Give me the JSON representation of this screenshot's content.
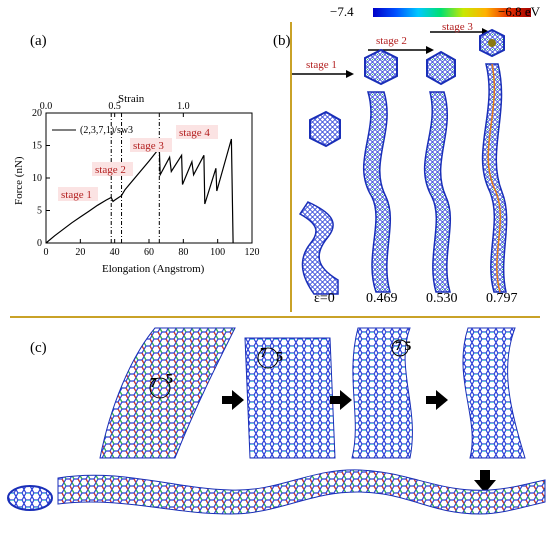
{
  "panel_labels": {
    "a": "(a)",
    "b": "(b)",
    "c": "(c)"
  },
  "colorbar": {
    "min_label": "−7.4",
    "max_label": "−6.8 eV"
  },
  "panel_b": {
    "stages": [
      "stage 1",
      "stage 2",
      "stage 3"
    ],
    "strain_values": [
      "ε=0",
      "0.469",
      "0.530",
      "0.797"
    ]
  },
  "chart_data": {
    "type": "line",
    "title": "",
    "xlabel": "Elongation (Angstrom)",
    "ylabel": "Force (nN)",
    "top_xlabel": "Strain",
    "xlim": [
      0,
      120
    ],
    "ylim": [
      0,
      20
    ],
    "x_ticks": [
      "0",
      "20",
      "40",
      "60",
      "80",
      "100",
      "120"
    ],
    "y_ticks": [
      "0",
      "5",
      "10",
      "15",
      "20"
    ],
    "top_ticks": [
      "0.0",
      "0.5",
      "1.0"
    ],
    "legend": "(2,3,7,1)/sw3",
    "annotations": [
      "stage 1",
      "stage 2",
      "stage 3",
      "stage 4"
    ],
    "dashed_lines_x": [
      38,
      44,
      66
    ],
    "series": [
      {
        "x": [
          0,
          5,
          10,
          15,
          20,
          25,
          30,
          35,
          38,
          39,
          40,
          44,
          46,
          60,
          66,
          66.5,
          72,
          73,
          79,
          79.5,
          85,
          86,
          92,
          92.5,
          99,
          99.5,
          108,
          109
        ],
        "y": [
          0,
          1.1,
          2.1,
          3.1,
          4.0,
          4.9,
          5.8,
          6.6,
          7.0,
          6.4,
          6.6,
          7.3,
          8.2,
          12.6,
          14.6,
          10.5,
          13.2,
          11.0,
          13.5,
          9.0,
          12.5,
          10.5,
          13.5,
          6.0,
          11.5,
          8.0,
          16.0,
          0
        ]
      }
    ]
  }
}
